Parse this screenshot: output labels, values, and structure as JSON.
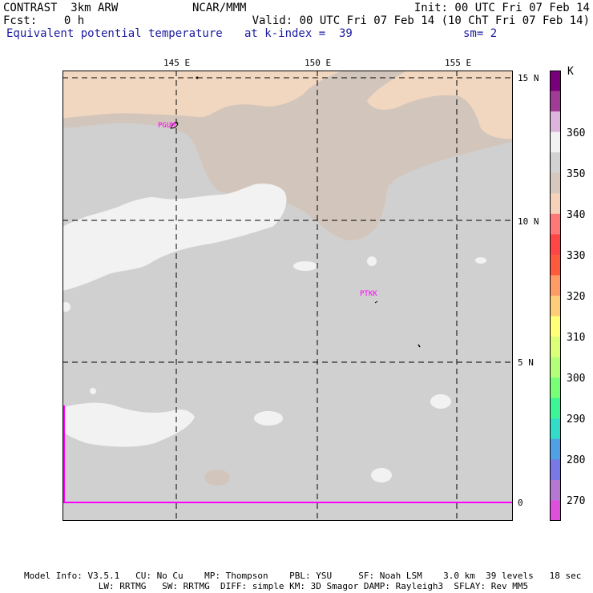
{
  "header": {
    "left_line1": "CONTRAST  3km ARW",
    "left_line2": "Fcst:    0 h",
    "center_line1": "NCAR/MMM",
    "init": "Init: 00 UTC Fri 07 Feb 14",
    "valid": "Valid: 00 UTC Fri 07 Feb 14 (10 ChT Fri 07 Feb 14)",
    "field": "Equivalent potential temperature",
    "level": "at k-index =  39",
    "smooth": "sm= 2"
  },
  "map": {
    "lon_labels": [
      "145 E",
      "150 E",
      "155 E"
    ],
    "lat_labels": [
      "15 N",
      "10 N",
      "5 N",
      "0"
    ],
    "stations": [
      "PGUM",
      "PTKK"
    ]
  },
  "colorbar": {
    "unit": "K",
    "labels": [
      "360",
      "350",
      "340",
      "330",
      "320",
      "310",
      "300",
      "290",
      "280",
      "270"
    ],
    "colors": [
      "#780078",
      "#a03c96",
      "#dcb4dc",
      "#f2f2f2",
      "#d2d2d2",
      "#d6c8be",
      "#f5d2b9",
      "#ff7878",
      "#ff4646",
      "#ff5a3c",
      "#ff9b64",
      "#ffcd78",
      "#ffff78",
      "#dcff78",
      "#b4ff78",
      "#78ff78",
      "#3cf596",
      "#32dcc8",
      "#50a0e6",
      "#7878e6",
      "#b478d2",
      "#dc50dc"
    ]
  },
  "footer": {
    "line1": "Model Info: V3.5.1   CU: No Cu    MP: Thompson    PBL: YSU     SF: Noah LSM    3.0 km  39 levels   18 sec",
    "line2": "              LW: RRTMG   SW: RRTMG  DIFF: simple KM: 3D Smagor DAMP: Rayleigh3  SFLAY: Rev MM5"
  }
}
